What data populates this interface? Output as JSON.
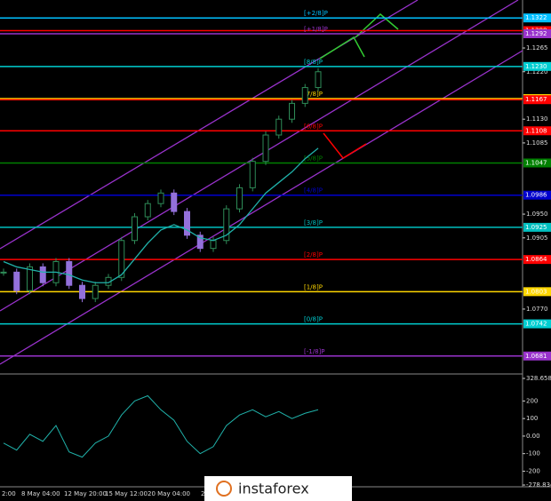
{
  "chart_data": {
    "type": "candlestick",
    "watermark": "instaforex",
    "close": [
      1.084,
      1.0805,
      1.085,
      1.082,
      1.086,
      1.0815,
      1.079,
      1.0815,
      1.083,
      1.09,
      1.0945,
      1.097,
      1.099,
      1.0955,
      1.091,
      1.0885,
      1.09,
      1.096,
      1.1,
      1.105,
      1.11,
      1.113,
      1.116,
      1.119,
      1.122
    ],
    "ma": [
      1.086,
      1.085,
      1.0845,
      1.084,
      1.084,
      1.0835,
      1.0825,
      1.082,
      1.082,
      1.0835,
      1.0865,
      1.0895,
      1.092,
      1.093,
      1.092,
      1.0905,
      1.09,
      1.091,
      1.093,
      1.096,
      1.099,
      1.101,
      1.103,
      1.1055,
      1.1075
    ],
    "ma_color": "#20b2aa",
    "up_color": "#2e8b57",
    "down_color": "#9370db",
    "ylim": [
      1.0652,
      1.1356
    ],
    "yticks": [
      {
        "value": 1.1265,
        "label": "1.1265"
      },
      {
        "value": 1.122,
        "label": "1.1220"
      },
      {
        "value": 1.113,
        "label": "1.1130"
      },
      {
        "value": 1.1085,
        "label": "1.1085"
      },
      {
        "value": 1.095,
        "label": "1.0950"
      },
      {
        "value": 1.0905,
        "label": "1.0905"
      },
      {
        "value": 1.077,
        "label": "1.0770"
      }
    ],
    "levels": [
      {
        "name": "[+2/8]P",
        "value": 1.1322,
        "label": "1.1322",
        "color": "#00bfff"
      },
      {
        "name": null,
        "value": 1.1298,
        "label": "1.1298",
        "color": "#ff0000"
      },
      {
        "name": "[+1/8]P",
        "value": 1.1292,
        "label": "1.1292",
        "color": "#9932cc"
      },
      {
        "name": "[8/8]P",
        "value": 1.123,
        "label": "1.1230",
        "color": "#00ced1"
      },
      {
        "name": "[7/8]P",
        "value": 1.1169,
        "label": "1.1169",
        "color": "#ffd700"
      },
      {
        "name": null,
        "value": 1.1167,
        "label": "1.1167",
        "color": "#ff0000"
      },
      {
        "name": "[6/8]P",
        "value": 1.1108,
        "label": "1.1108",
        "color": "#ff0000"
      },
      {
        "name": "[5/8]P",
        "value": 1.1047,
        "label": "1.1047",
        "color": "#008000"
      },
      {
        "name": "[4/8]P",
        "value": 1.0986,
        "label": "1.0986",
        "color": "#0000cd"
      },
      {
        "name": "[3/8]P",
        "value": 1.0925,
        "label": "1.0925",
        "color": "#00bfbf"
      },
      {
        "name": "[2/8]P",
        "value": 1.0864,
        "label": "1.0864",
        "color": "#ff0000"
      },
      {
        "name": "[1/8]P",
        "value": 1.0803,
        "label": "1.0803",
        "color": "#ffd700"
      },
      {
        "name": "[0/8]P",
        "value": 1.0742,
        "label": "1.0742",
        "color": "#00ced1"
      },
      {
        "name": "[-1/8]P",
        "value": 1.0681,
        "label": "1.0681",
        "color": "#9932cc"
      }
    ],
    "x_labels": [
      "2:00",
      "8 May 04:00",
      "12 May 20:00",
      "15 May 12:00",
      "20 May 04:00",
      "22"
    ],
    "cci": [
      -40,
      -80,
      10,
      -30,
      60,
      -90,
      -120,
      -40,
      0,
      120,
      200,
      230,
      150,
      90,
      -30,
      -100,
      -60,
      60,
      120,
      150,
      110,
      140,
      100,
      130,
      150
    ],
    "cci_color": "#20b2aa",
    "cci_ylim": [
      -278.834,
      328.6586
    ],
    "cci_yticks": [
      {
        "value": 328.6586,
        "label": "328.6586"
      },
      200,
      100,
      {
        "value": 0,
        "label": "0.00"
      },
      -100,
      -200,
      {
        "value": -278.834,
        "label": "-278.834"
      }
    ]
  }
}
